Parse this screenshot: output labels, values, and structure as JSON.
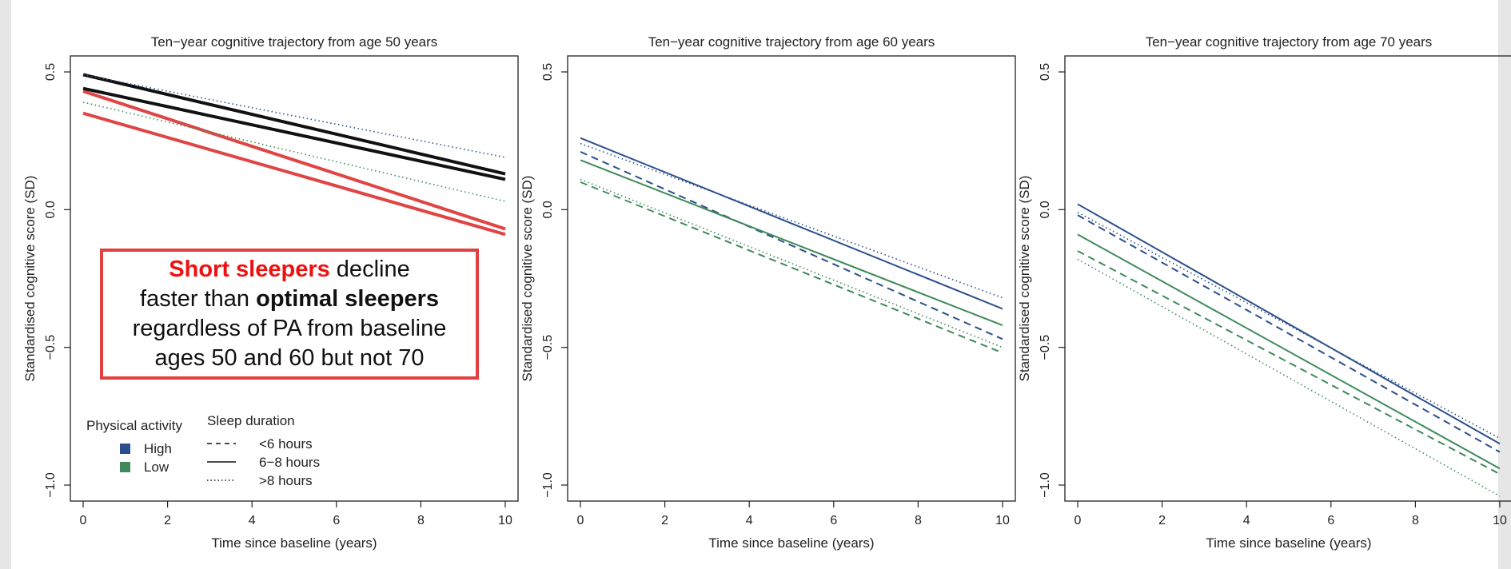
{
  "chart_data": [
    {
      "type": "line",
      "title": "Ten−year cognitive trajectory from age 50 years",
      "xlabel": "Time since baseline (years)",
      "ylabel": "Standardised cognitive score (SD)",
      "xlim": [
        0,
        10
      ],
      "ylim": [
        -1.0,
        0.5
      ],
      "xticks": [
        "0",
        "2",
        "4",
        "6",
        "8",
        "10"
      ],
      "yticks": [
        "−1.0",
        "−0.5",
        "0.0",
        "0.5"
      ],
      "series": [
        {
          "pa": "High",
          "sleep": "<6 hours",
          "color": "#e04545",
          "style": "solid",
          "width": 4,
          "x": [
            0,
            10
          ],
          "y": [
            0.43,
            -0.07
          ]
        },
        {
          "pa": "Low",
          "sleep": "<6 hours",
          "color": "#e04545",
          "style": "solid",
          "width": 4,
          "x": [
            0,
            10
          ],
          "y": [
            0.35,
            -0.09
          ]
        },
        {
          "pa": "High",
          "sleep": "6−8 hours",
          "color": "#111111",
          "style": "solid",
          "width": 4,
          "x": [
            0,
            10
          ],
          "y": [
            0.49,
            0.13
          ]
        },
        {
          "pa": "Low",
          "sleep": "6−8 hours",
          "color": "#111111",
          "style": "solid",
          "width": 4,
          "x": [
            0,
            10
          ],
          "y": [
            0.44,
            0.11
          ]
        },
        {
          "pa": "High",
          "sleep": ">8 hours",
          "color": "#2b4f8c",
          "style": "dotted",
          "width": 1.6,
          "x": [
            0,
            10
          ],
          "y": [
            0.49,
            0.19
          ]
        },
        {
          "pa": "Low",
          "sleep": ">8 hours",
          "color": "#3e8a5a",
          "style": "dotted",
          "width": 1.6,
          "x": [
            0,
            10
          ],
          "y": [
            0.39,
            0.03
          ]
        }
      ]
    },
    {
      "type": "line",
      "title": "Ten−year cognitive trajectory from age 60 years",
      "xlabel": "Time since baseline (years)",
      "ylabel": "Standardised cognitive score (SD)",
      "xlim": [
        0,
        10
      ],
      "ylim": [
        -1.0,
        0.5
      ],
      "xticks": [
        "0",
        "2",
        "4",
        "6",
        "8",
        "10"
      ],
      "yticks": [
        "−1.0",
        "−0.5",
        "0.0",
        "0.5"
      ],
      "series": [
        {
          "pa": "High",
          "sleep": "6−8 hours",
          "color": "#2b4f8c",
          "style": "solid",
          "width": 2,
          "x": [
            0,
            10
          ],
          "y": [
            0.26,
            -0.36
          ]
        },
        {
          "pa": "High",
          "sleep": "<6 hours",
          "color": "#2b4f8c",
          "style": "dashed",
          "width": 2,
          "x": [
            0,
            10
          ],
          "y": [
            0.21,
            -0.47
          ]
        },
        {
          "pa": "High",
          "sleep": ">8 hours",
          "color": "#2b4f8c",
          "style": "dotted",
          "width": 1.6,
          "x": [
            0,
            10
          ],
          "y": [
            0.24,
            -0.32
          ]
        },
        {
          "pa": "Low",
          "sleep": "6−8 hours",
          "color": "#3e8a5a",
          "style": "solid",
          "width": 2,
          "x": [
            0,
            10
          ],
          "y": [
            0.18,
            -0.42
          ]
        },
        {
          "pa": "Low",
          "sleep": "<6 hours",
          "color": "#3e8a5a",
          "style": "dashed",
          "width": 2,
          "x": [
            0,
            10
          ],
          "y": [
            0.1,
            -0.52
          ]
        },
        {
          "pa": "Low",
          "sleep": ">8 hours",
          "color": "#3e8a5a",
          "style": "dotted",
          "width": 1.6,
          "x": [
            0,
            10
          ],
          "y": [
            0.11,
            -0.5
          ]
        }
      ]
    },
    {
      "type": "line",
      "title": "Ten−year cognitive trajectory from age 70 years",
      "xlabel": "Time since baseline (years)",
      "ylabel": "Standardised cognitive score (SD)",
      "xlim": [
        0,
        10
      ],
      "ylim": [
        -1.0,
        0.5
      ],
      "xticks": [
        "0",
        "2",
        "4",
        "6",
        "8",
        "10"
      ],
      "yticks": [
        "−1.0",
        "−0.5",
        "0.0",
        "0.5"
      ],
      "series": [
        {
          "pa": "High",
          "sleep": "6−8 hours",
          "color": "#2b4f8c",
          "style": "solid",
          "width": 2,
          "x": [
            0,
            10
          ],
          "y": [
            0.02,
            -0.85
          ]
        },
        {
          "pa": "High",
          "sleep": "<6 hours",
          "color": "#2b4f8c",
          "style": "dashed",
          "width": 2,
          "x": [
            0,
            10
          ],
          "y": [
            -0.02,
            -0.88
          ]
        },
        {
          "pa": "High",
          "sleep": ">8 hours",
          "color": "#2b4f8c",
          "style": "dotted",
          "width": 1.6,
          "x": [
            0,
            10
          ],
          "y": [
            -0.01,
            -0.83
          ]
        },
        {
          "pa": "Low",
          "sleep": "6−8 hours",
          "color": "#3e8a5a",
          "style": "solid",
          "width": 2,
          "x": [
            0,
            10
          ],
          "y": [
            -0.09,
            -0.94
          ]
        },
        {
          "pa": "Low",
          "sleep": "<6 hours",
          "color": "#3e8a5a",
          "style": "dashed",
          "width": 2,
          "x": [
            0,
            10
          ],
          "y": [
            -0.15,
            -0.96
          ]
        },
        {
          "pa": "Low",
          "sleep": ">8 hours",
          "color": "#3e8a5a",
          "style": "dotted",
          "width": 1.6,
          "x": [
            0,
            10
          ],
          "y": [
            -0.18,
            -1.04
          ]
        }
      ]
    }
  ],
  "legend": {
    "pa_title": "Physical activity",
    "pa_items": [
      {
        "label": "High",
        "color": "#2b4f8c"
      },
      {
        "label": "Low",
        "color": "#3e8a5a"
      }
    ],
    "sleep_title": "Sleep duration",
    "sleep_items": [
      {
        "label": "<6 hours",
        "style": "dashed"
      },
      {
        "label": "6−8 hours",
        "style": "solid"
      },
      {
        "label": ">8 hours",
        "style": "dotted"
      }
    ],
    "placement": "bottom-left of first panel"
  },
  "callout": {
    "part1": "Short sleepers",
    "part2": " decline",
    "part3": "faster than ",
    "part4": "optimal sleepers",
    "part5": "regardless of PA from baseline",
    "part6": "ages 50 and 60 but not 70",
    "border_color": "#e04040",
    "highlight_color": "#ee1111"
  }
}
